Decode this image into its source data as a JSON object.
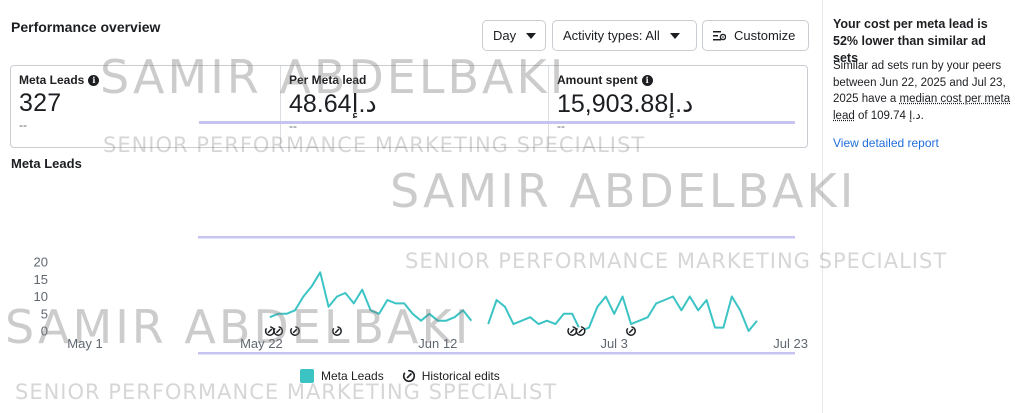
{
  "header": {
    "title": "Performance overview",
    "day_label": "Day",
    "activity_label": "Activity types: All",
    "customize_label": "Customize"
  },
  "metrics": [
    {
      "label": "Meta Leads",
      "has_info": true,
      "value": "327",
      "delta": "--"
    },
    {
      "label": "Per Meta lead",
      "has_info": false,
      "value": "48.64د.إ",
      "delta": "--"
    },
    {
      "label": "Amount spent",
      "has_info": true,
      "value": "15,903.88د.إ",
      "delta": "--"
    }
  ],
  "chart_title": "Meta Leads",
  "chart_data": {
    "type": "line",
    "title": "Meta Leads",
    "ylim": [
      0,
      20
    ],
    "y_ticks": [
      0,
      5,
      10,
      15,
      20
    ],
    "x_tick_labels": [
      "May 1",
      "May 22",
      "Jun 12",
      "Jul 3",
      "Jul 23"
    ],
    "series": [
      {
        "name": "Meta Leads",
        "color": "#3cc4c5",
        "segments": [
          [
            [
              "2025-05-23",
              4
            ],
            [
              "2025-05-24",
              5
            ],
            [
              "2025-05-25",
              5
            ],
            [
              "2025-05-26",
              6
            ],
            [
              "2025-05-27",
              10
            ],
            [
              "2025-05-28",
              13
            ],
            [
              "2025-05-29",
              17
            ],
            [
              "2025-05-30",
              7
            ],
            [
              "2025-05-31",
              10
            ],
            [
              "2025-06-01",
              11
            ],
            [
              "2025-06-02",
              8
            ],
            [
              "2025-06-03",
              12
            ],
            [
              "2025-06-04",
              6
            ],
            [
              "2025-06-05",
              5
            ],
            [
              "2025-06-06",
              9
            ],
            [
              "2025-06-07",
              8
            ],
            [
              "2025-06-08",
              8
            ],
            [
              "2025-06-09",
              5
            ],
            [
              "2025-06-10",
              3
            ],
            [
              "2025-06-11",
              5
            ],
            [
              "2025-06-12",
              3
            ],
            [
              "2025-06-13",
              3
            ],
            [
              "2025-06-14",
              4
            ],
            [
              "2025-06-15",
              6
            ],
            [
              "2025-06-16",
              3
            ]
          ],
          [
            [
              "2025-06-18",
              2
            ],
            [
              "2025-06-19",
              9
            ],
            [
              "2025-06-20",
              7
            ],
            [
              "2025-06-21",
              2
            ],
            [
              "2025-06-22",
              3
            ],
            [
              "2025-06-23",
              4
            ],
            [
              "2025-06-24",
              2
            ],
            [
              "2025-06-25",
              3
            ],
            [
              "2025-06-26",
              2
            ],
            [
              "2025-06-27",
              5
            ],
            [
              "2025-06-28",
              5
            ],
            [
              "2025-06-29",
              0
            ],
            [
              "2025-06-30",
              1
            ],
            [
              "2025-07-01",
              7
            ],
            [
              "2025-07-02",
              10
            ],
            [
              "2025-07-03",
              5
            ],
            [
              "2025-07-04",
              10
            ],
            [
              "2025-07-05",
              2
            ],
            [
              "2025-07-06",
              3
            ],
            [
              "2025-07-07",
              4
            ],
            [
              "2025-07-08",
              8
            ],
            [
              "2025-07-09",
              9
            ],
            [
              "2025-07-10",
              10
            ],
            [
              "2025-07-11",
              6
            ],
            [
              "2025-07-12",
              10
            ],
            [
              "2025-07-13",
              6
            ],
            [
              "2025-07-14",
              9
            ],
            [
              "2025-07-15",
              1
            ],
            [
              "2025-07-16",
              1
            ],
            [
              "2025-07-17",
              10
            ],
            [
              "2025-07-18",
              6
            ],
            [
              "2025-07-19",
              0
            ],
            [
              "2025-07-20",
              3
            ]
          ]
        ]
      }
    ],
    "historical_edits": [
      "2025-05-23",
      "2025-05-24",
      "2025-05-26",
      "2025-05-31",
      "2025-06-28",
      "2025-06-29",
      "2025-07-05"
    ],
    "grid": false
  },
  "legend": {
    "series_label": "Meta Leads",
    "edits_label": "Historical edits"
  },
  "insight": {
    "title": "Your cost per meta lead is 52% lower than similar ad sets",
    "body_before": "Similar ad sets run by your peers between Jun 22, 2025 and Jul 23, 2025 have a ",
    "body_link": "median cost per meta lead",
    "body_after": " of 109.74 د.إ.",
    "link": "View detailed report"
  },
  "watermark": {
    "name": "SAMIR ABDELBAKI",
    "subtitle": "SENIOR PERFORMANCE MARKETING SPECIALIST"
  }
}
